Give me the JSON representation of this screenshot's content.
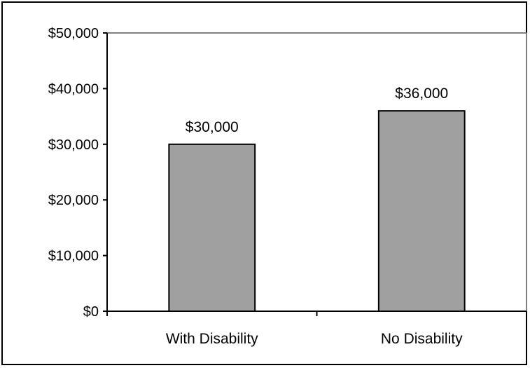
{
  "chart_data": {
    "type": "bar",
    "categories": [
      "With Disability",
      "No Disability"
    ],
    "values": [
      30000,
      36000
    ],
    "value_labels": [
      "$30,000",
      "$36,000"
    ],
    "title": "",
    "xlabel": "",
    "ylabel": "",
    "ylim": [
      0,
      50000
    ],
    "yticks": [
      0,
      10000,
      20000,
      30000,
      40000,
      50000
    ],
    "ytick_labels": [
      "$0",
      "$10,000",
      "$20,000",
      "$30,000",
      "$40,000",
      "$50,000"
    ],
    "grid": false,
    "legend": "none",
    "colors": {
      "bar_fill": "#a0a0a0",
      "bar_stroke": "#000000",
      "plot_border": "#808080"
    }
  }
}
